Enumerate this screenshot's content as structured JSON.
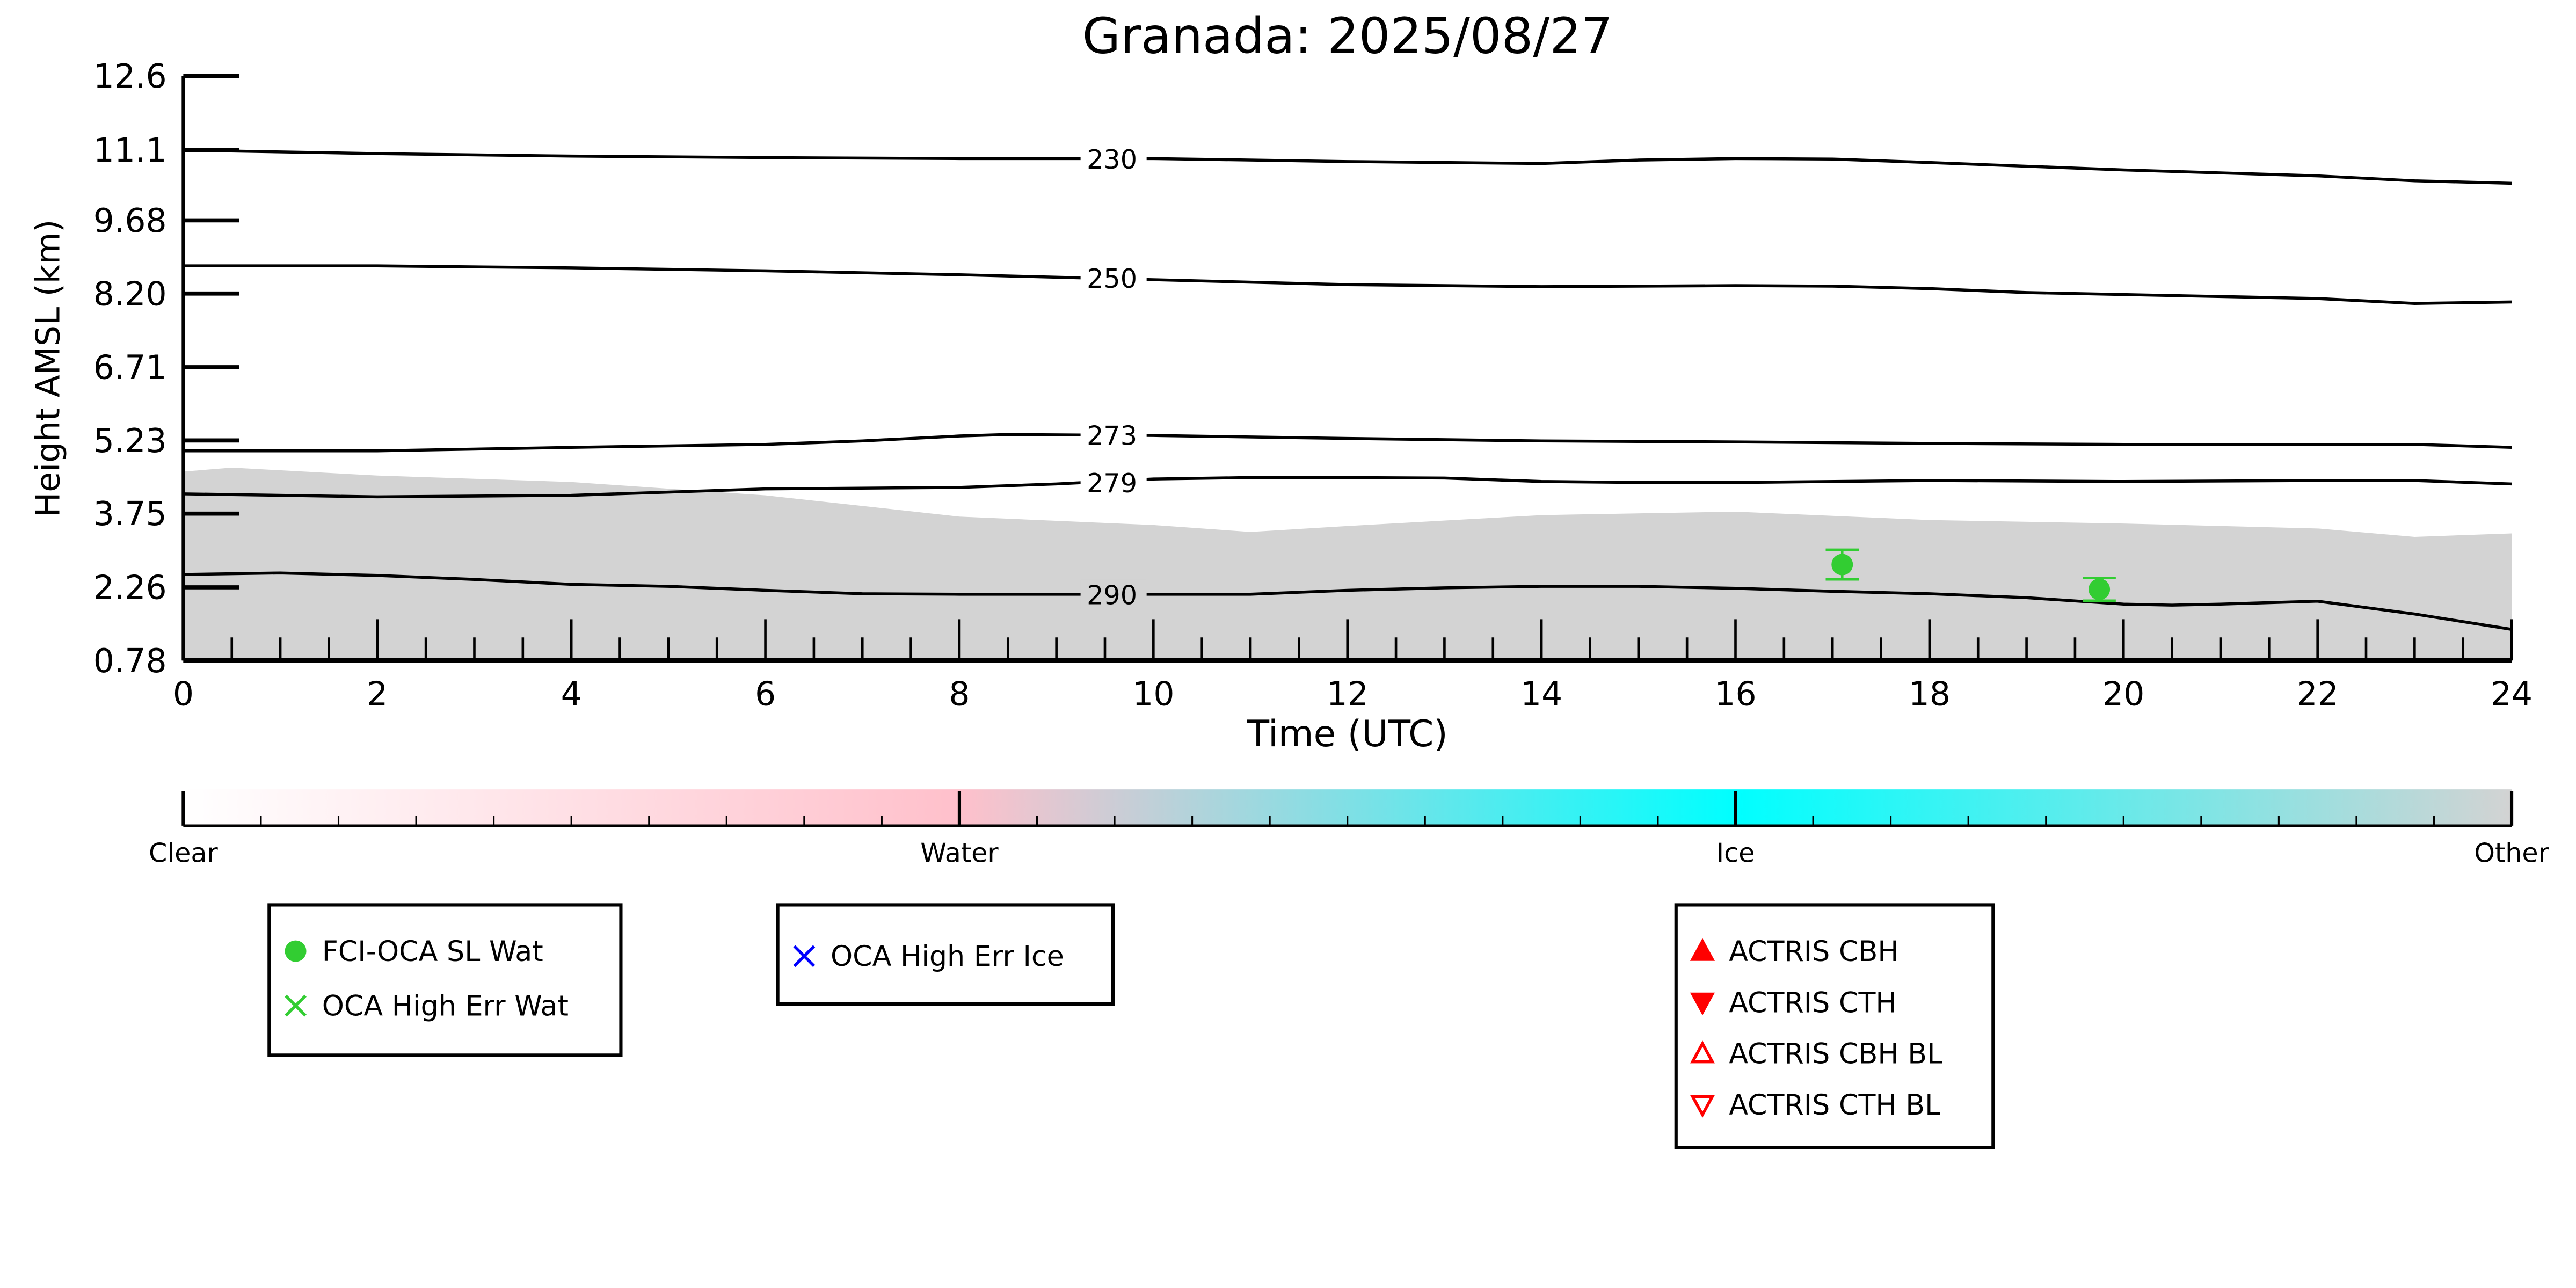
{
  "chart_data": {
    "type": "line",
    "title": "Granada: 2025/08/27",
    "xlabel": "Time (UTC)",
    "ylabel": "Height AMSL (km)",
    "xlim": [
      0,
      24
    ],
    "ylim": [
      0.78,
      12.6
    ],
    "xticks": [
      0,
      2,
      4,
      6,
      8,
      10,
      12,
      14,
      16,
      18,
      20,
      22,
      24
    ],
    "yticks": [
      "0.78",
      "2.26",
      "3.75",
      "5.23",
      "6.71",
      "8.20",
      "9.68",
      "11.1",
      "12.6"
    ],
    "yticks_values": [
      0.78,
      2.26,
      3.75,
      5.23,
      6.71,
      8.2,
      9.68,
      11.1,
      12.6
    ],
    "cloud_mask_top": {
      "class": "Other",
      "x": [
        0,
        0.5,
        2,
        4,
        6,
        8,
        10,
        11,
        12,
        14,
        16,
        18,
        20,
        22,
        23,
        24
      ],
      "y": [
        4.6,
        4.68,
        4.52,
        4.39,
        4.12,
        3.69,
        3.52,
        3.38,
        3.5,
        3.72,
        3.79,
        3.62,
        3.55,
        3.45,
        3.28,
        3.35
      ]
    },
    "contours": [
      {
        "label": "230",
        "x": [
          0,
          2,
          4,
          6,
          8,
          10,
          12,
          14,
          15,
          16,
          17,
          18,
          20,
          22,
          23,
          24
        ],
        "y": [
          11.1,
          11.03,
          10.98,
          10.95,
          10.93,
          10.93,
          10.87,
          10.83,
          10.9,
          10.93,
          10.92,
          10.85,
          10.7,
          10.58,
          10.48,
          10.43
        ]
      },
      {
        "label": "250",
        "x": [
          0,
          2,
          4,
          6,
          8,
          10,
          12,
          14,
          16,
          17,
          18,
          19,
          20,
          22,
          23,
          24
        ],
        "y": [
          8.76,
          8.76,
          8.72,
          8.66,
          8.58,
          8.48,
          8.38,
          8.34,
          8.36,
          8.35,
          8.3,
          8.22,
          8.18,
          8.1,
          8.0,
          8.03
        ]
      },
      {
        "label": "273",
        "x": [
          0,
          2,
          4,
          6,
          7,
          8,
          8.5,
          10,
          12,
          14,
          16,
          18,
          20,
          22,
          23,
          24
        ],
        "y": [
          5.02,
          5.02,
          5.09,
          5.15,
          5.22,
          5.32,
          5.35,
          5.33,
          5.27,
          5.22,
          5.2,
          5.17,
          5.15,
          5.15,
          5.15,
          5.09
        ]
      },
      {
        "label": "279",
        "x": [
          0,
          2,
          4,
          6,
          8,
          9,
          10,
          11,
          12,
          13,
          14,
          15,
          16,
          18,
          20,
          22,
          23,
          24
        ],
        "y": [
          4.15,
          4.09,
          4.12,
          4.25,
          4.28,
          4.35,
          4.45,
          4.48,
          4.48,
          4.47,
          4.4,
          4.38,
          4.38,
          4.42,
          4.4,
          4.42,
          4.42,
          4.35
        ]
      },
      {
        "label": "290",
        "x": [
          0,
          1,
          2,
          3,
          4,
          5,
          6,
          7,
          8,
          11,
          12,
          13,
          14,
          15,
          16,
          17,
          18,
          19,
          20,
          20.5,
          21,
          22,
          23,
          24
        ],
        "y": [
          2.52,
          2.55,
          2.5,
          2.42,
          2.32,
          2.28,
          2.2,
          2.13,
          2.12,
          2.12,
          2.2,
          2.25,
          2.28,
          2.28,
          2.24,
          2.18,
          2.13,
          2.05,
          1.92,
          1.9,
          1.92,
          1.98,
          1.72,
          1.41
        ]
      }
    ],
    "series": [
      {
        "name": "FCI-OCA SL Wat",
        "marker": "circle",
        "color": "#32cd32",
        "x": [
          17.1,
          19.75
        ],
        "y": [
          2.72,
          2.22
        ],
        "yerr": [
          0.3,
          0.23
        ]
      },
      {
        "name": "OCA High Err Wat",
        "marker": "x",
        "color": "#32cd32",
        "x": [],
        "y": []
      },
      {
        "name": "OCA High Err Ice",
        "marker": "x",
        "color": "#0000ff",
        "x": [],
        "y": []
      },
      {
        "name": "ACTRIS CBH",
        "marker": "triangle-up-filled",
        "color": "#ff0000",
        "x": [],
        "y": []
      },
      {
        "name": "ACTRIS CTH",
        "marker": "triangle-down-filled",
        "color": "#ff0000",
        "x": [],
        "y": []
      },
      {
        "name": "ACTRIS CBH BL",
        "marker": "triangle-up-open",
        "color": "#ff0000",
        "x": [],
        "y": []
      },
      {
        "name": "ACTRIS CTH BL",
        "marker": "triangle-down-open",
        "color": "#ff0000",
        "x": [],
        "y": []
      }
    ],
    "colorbar": {
      "labels": [
        "Clear",
        "Water",
        "Ice",
        "Other"
      ],
      "colors": [
        "#ffffff",
        "#ffc0cb",
        "#00ffff",
        "#d3d3d3"
      ]
    },
    "legends": [
      [
        "FCI-OCA SL Wat",
        "OCA High Err Wat"
      ],
      [
        "OCA High Err Ice"
      ],
      [
        "ACTRIS CBH",
        "ACTRIS CTH",
        "ACTRIS CBH BL",
        "ACTRIS CTH BL"
      ]
    ]
  }
}
